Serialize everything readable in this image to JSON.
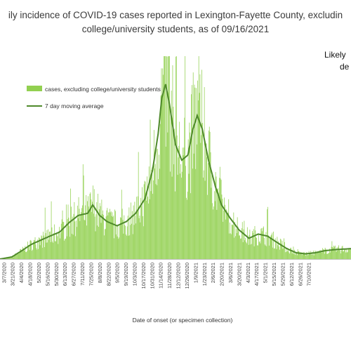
{
  "chart_data": {
    "type": "bar",
    "title_line1": "ily incidence of COVID-19 cases reported in Lexington-Fayette County, excludin",
    "title_line2": "college/university students, as of 09/16/2021",
    "annotation_lines": [
      "Likely",
      "de"
    ],
    "xlabel": "Date of onset (or specimen collection)",
    "ylabel": "",
    "legend": {
      "placement": "upper-left",
      "bar_label": "cases, excluding college/university students",
      "line_label": "7 day moving average"
    },
    "colors": {
      "bars": "#92d050",
      "line": "#4f8a2b"
    },
    "x_range": [
      "2020-03-01",
      "2021-09-16"
    ],
    "y_axis_visible": false,
    "tick_labels": [
      "3/7/2020",
      "3/21/2020",
      "4/4/2020",
      "4/18/2020",
      "5/2/2020",
      "5/16/2020",
      "5/30/2020",
      "6/13/2020",
      "6/27/2020",
      "7/11/2020",
      "7/25/2020",
      "8/8/2020",
      "8/22/2020",
      "9/5/2020",
      "9/19/2020",
      "10/3/2020",
      "10/17/2020",
      "10/31/2020",
      "11/14/2020",
      "11/28/2020",
      "12/12/2020",
      "12/26/2020",
      "1/9/2021",
      "1/23/2021",
      "2/6/2021",
      "2/20/2021",
      "3/6/2021",
      "3/20/2021",
      "4/3/2021",
      "4/17/2021",
      "5/1/2021",
      "5/15/2021",
      "5/29/2021",
      "6/12/2021",
      "6/26/2021",
      "7/10/2021"
    ],
    "moving_average_profile": [
      [
        "2020-03-01",
        0
      ],
      [
        "2020-03-20",
        2
      ],
      [
        "2020-04-05",
        8
      ],
      [
        "2020-04-20",
        14
      ],
      [
        "2020-05-05",
        18
      ],
      [
        "2020-05-20",
        22
      ],
      [
        "2020-06-05",
        26
      ],
      [
        "2020-06-20",
        35
      ],
      [
        "2020-07-05",
        42
      ],
      [
        "2020-07-20",
        44
      ],
      [
        "2020-07-28",
        52
      ],
      [
        "2020-08-08",
        42
      ],
      [
        "2020-08-20",
        36
      ],
      [
        "2020-09-05",
        32
      ],
      [
        "2020-09-20",
        36
      ],
      [
        "2020-10-05",
        44
      ],
      [
        "2020-10-20",
        58
      ],
      [
        "2020-11-01",
        85
      ],
      [
        "2020-11-10",
        120
      ],
      [
        "2020-11-16",
        155
      ],
      [
        "2020-11-22",
        168
      ],
      [
        "2020-11-28",
        150
      ],
      [
        "2020-12-08",
        110
      ],
      [
        "2020-12-18",
        95
      ],
      [
        "2020-12-28",
        100
      ],
      [
        "2021-01-05",
        125
      ],
      [
        "2021-01-12",
        138
      ],
      [
        "2021-01-20",
        125
      ],
      [
        "2021-01-30",
        95
      ],
      [
        "2021-02-10",
        70
      ],
      [
        "2021-02-20",
        52
      ],
      [
        "2021-03-05",
        40
      ],
      [
        "2021-03-20",
        28
      ],
      [
        "2021-04-05",
        20
      ],
      [
        "2021-04-20",
        24
      ],
      [
        "2021-05-05",
        22
      ],
      [
        "2021-05-20",
        16
      ],
      [
        "2021-06-05",
        10
      ],
      [
        "2021-06-20",
        6
      ],
      [
        "2021-07-05",
        5
      ],
      [
        "2021-07-20",
        6
      ],
      [
        "2021-08-05",
        8
      ],
      [
        "2021-08-20",
        9
      ],
      [
        "2021-09-16",
        10
      ]
    ]
  }
}
